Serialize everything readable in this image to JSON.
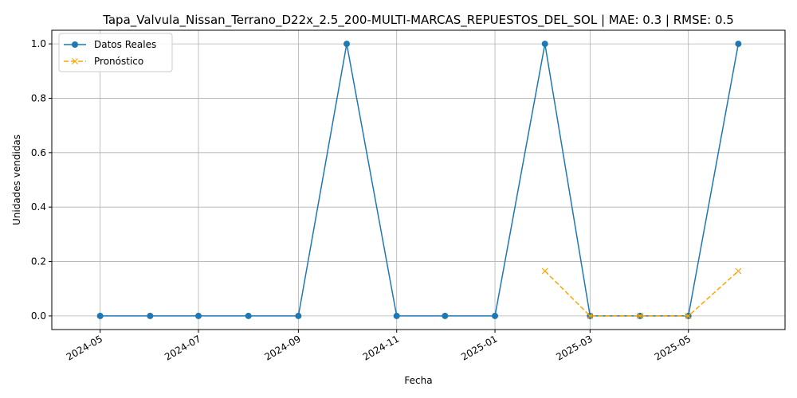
{
  "chart_data": {
    "type": "line",
    "title": "Tapa_Valvula_Nissan_Terrano_D22x_2.5_200-MULTI-MARCAS_REPUESTOS_DEL_SOL | MAE: 0.3 | RMSE: 0.5",
    "xlabel": "Fecha",
    "ylabel": "Unidades vendidas",
    "ylim": [
      -0.05,
      1.05
    ],
    "xlim": [
      "2024-04-01",
      "2025-06-30"
    ],
    "x_ticks": [
      "2024-05",
      "2024-07",
      "2024-09",
      "2024-11",
      "2025-01",
      "2025-03",
      "2025-05"
    ],
    "y_ticks": [
      "0.0",
      "0.2",
      "0.4",
      "0.6",
      "0.8",
      "1.0"
    ],
    "grid": true,
    "legend_position": "top-left",
    "series": [
      {
        "name": "Datos Reales",
        "color": "#1f77b4",
        "style": "solid",
        "marker": "circle",
        "x": [
          "2024-05-01",
          "2024-06-01",
          "2024-07-01",
          "2024-08-01",
          "2024-09-01",
          "2024-10-01",
          "2024-11-01",
          "2024-12-01",
          "2025-01-01",
          "2025-02-01",
          "2025-03-01",
          "2025-04-01",
          "2025-05-01",
          "2025-06-01"
        ],
        "values": [
          0,
          0,
          0,
          0,
          0,
          1,
          0,
          0,
          0,
          1,
          0,
          0,
          0,
          1
        ]
      },
      {
        "name": "Pronóstico",
        "color": "#ffa500",
        "style": "dashed",
        "marker": "x",
        "x": [
          "2025-02-01",
          "2025-03-01",
          "2025-04-01",
          "2025-05-01",
          "2025-06-01"
        ],
        "values": [
          0.165,
          0,
          0,
          0,
          0.165
        ]
      }
    ]
  }
}
